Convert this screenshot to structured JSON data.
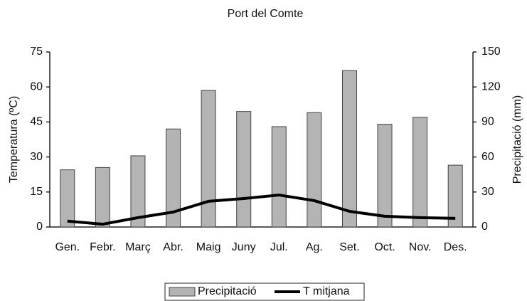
{
  "chart_data": {
    "type": "bar",
    "title": "Port del Comte",
    "y_label": "Temperatura (ºC)",
    "y2_label": "Precipitació (mm)",
    "categories": [
      "Gen.",
      "Febr.",
      "Març",
      "Abr.",
      "Maig",
      "Juny",
      "Jul.",
      "Ag.",
      "Set.",
      "Oct.",
      "Nov.",
      "Des."
    ],
    "series": [
      {
        "name": "Precipitació",
        "type": "bar",
        "axis": "y2",
        "color": "#b4b4b4",
        "values": [
          49,
          51,
          61,
          84,
          117,
          99,
          86,
          98,
          134,
          88,
          94,
          53
        ]
      },
      {
        "name": "T mitjana",
        "type": "line",
        "color": "#000000",
        "values": [
          2.5,
          1.2,
          4,
          6.4,
          11,
          12.2,
          13.7,
          11.3,
          6.7,
          4.6,
          4,
          3.7
        ]
      }
    ],
    "ylim": [
      0,
      75
    ],
    "yticks": [
      0,
      15,
      30,
      45,
      60,
      75
    ],
    "y2lim": [
      0,
      150
    ],
    "y2ticks": [
      0,
      30,
      60,
      90,
      120,
      150
    ],
    "grid": false,
    "legend": "bottom"
  }
}
